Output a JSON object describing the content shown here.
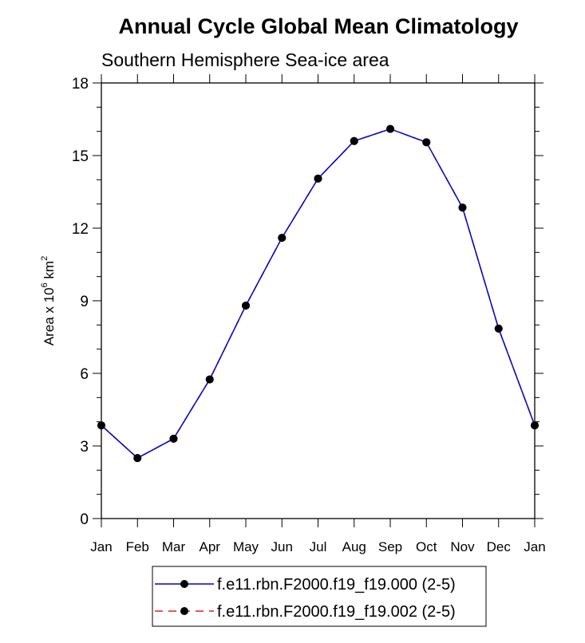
{
  "chart_data": {
    "type": "line",
    "title": "Annual Cycle Global Mean Climatology",
    "subtitle": "Southern Hemisphere Sea-ice area",
    "ylabel_main": "Area x 10",
    "ylabel_exp1": "6",
    "ylabel_unit": " km",
    "ylabel_exp2": "2",
    "categories": [
      "Jan",
      "Feb",
      "Mar",
      "Apr",
      "May",
      "Jun",
      "Jul",
      "Aug",
      "Sep",
      "Oct",
      "Nov",
      "Dec",
      "Jan"
    ],
    "ylim": [
      0,
      18
    ],
    "yticks": [
      0,
      3,
      6,
      9,
      12,
      15,
      18
    ],
    "grid": false,
    "legend_position": "bottom-center",
    "series": [
      {
        "name": "f.e11.rbn.F2000.f19_f19.000 (2-5)",
        "color": "#0000cc",
        "dash": "solid",
        "values": [
          3.85,
          2.5,
          3.3,
          5.75,
          8.8,
          11.6,
          14.05,
          15.6,
          16.1,
          15.55,
          12.85,
          7.85,
          3.85
        ]
      },
      {
        "name": "f.e11.rbn.F2000.f19_f19.002 (2-5)",
        "color": "#dd2222",
        "dash": "dashed",
        "values": [
          3.85,
          2.5,
          3.3,
          5.75,
          8.8,
          11.6,
          14.05,
          15.6,
          16.1,
          15.55,
          12.85,
          7.85,
          3.85
        ]
      }
    ]
  }
}
